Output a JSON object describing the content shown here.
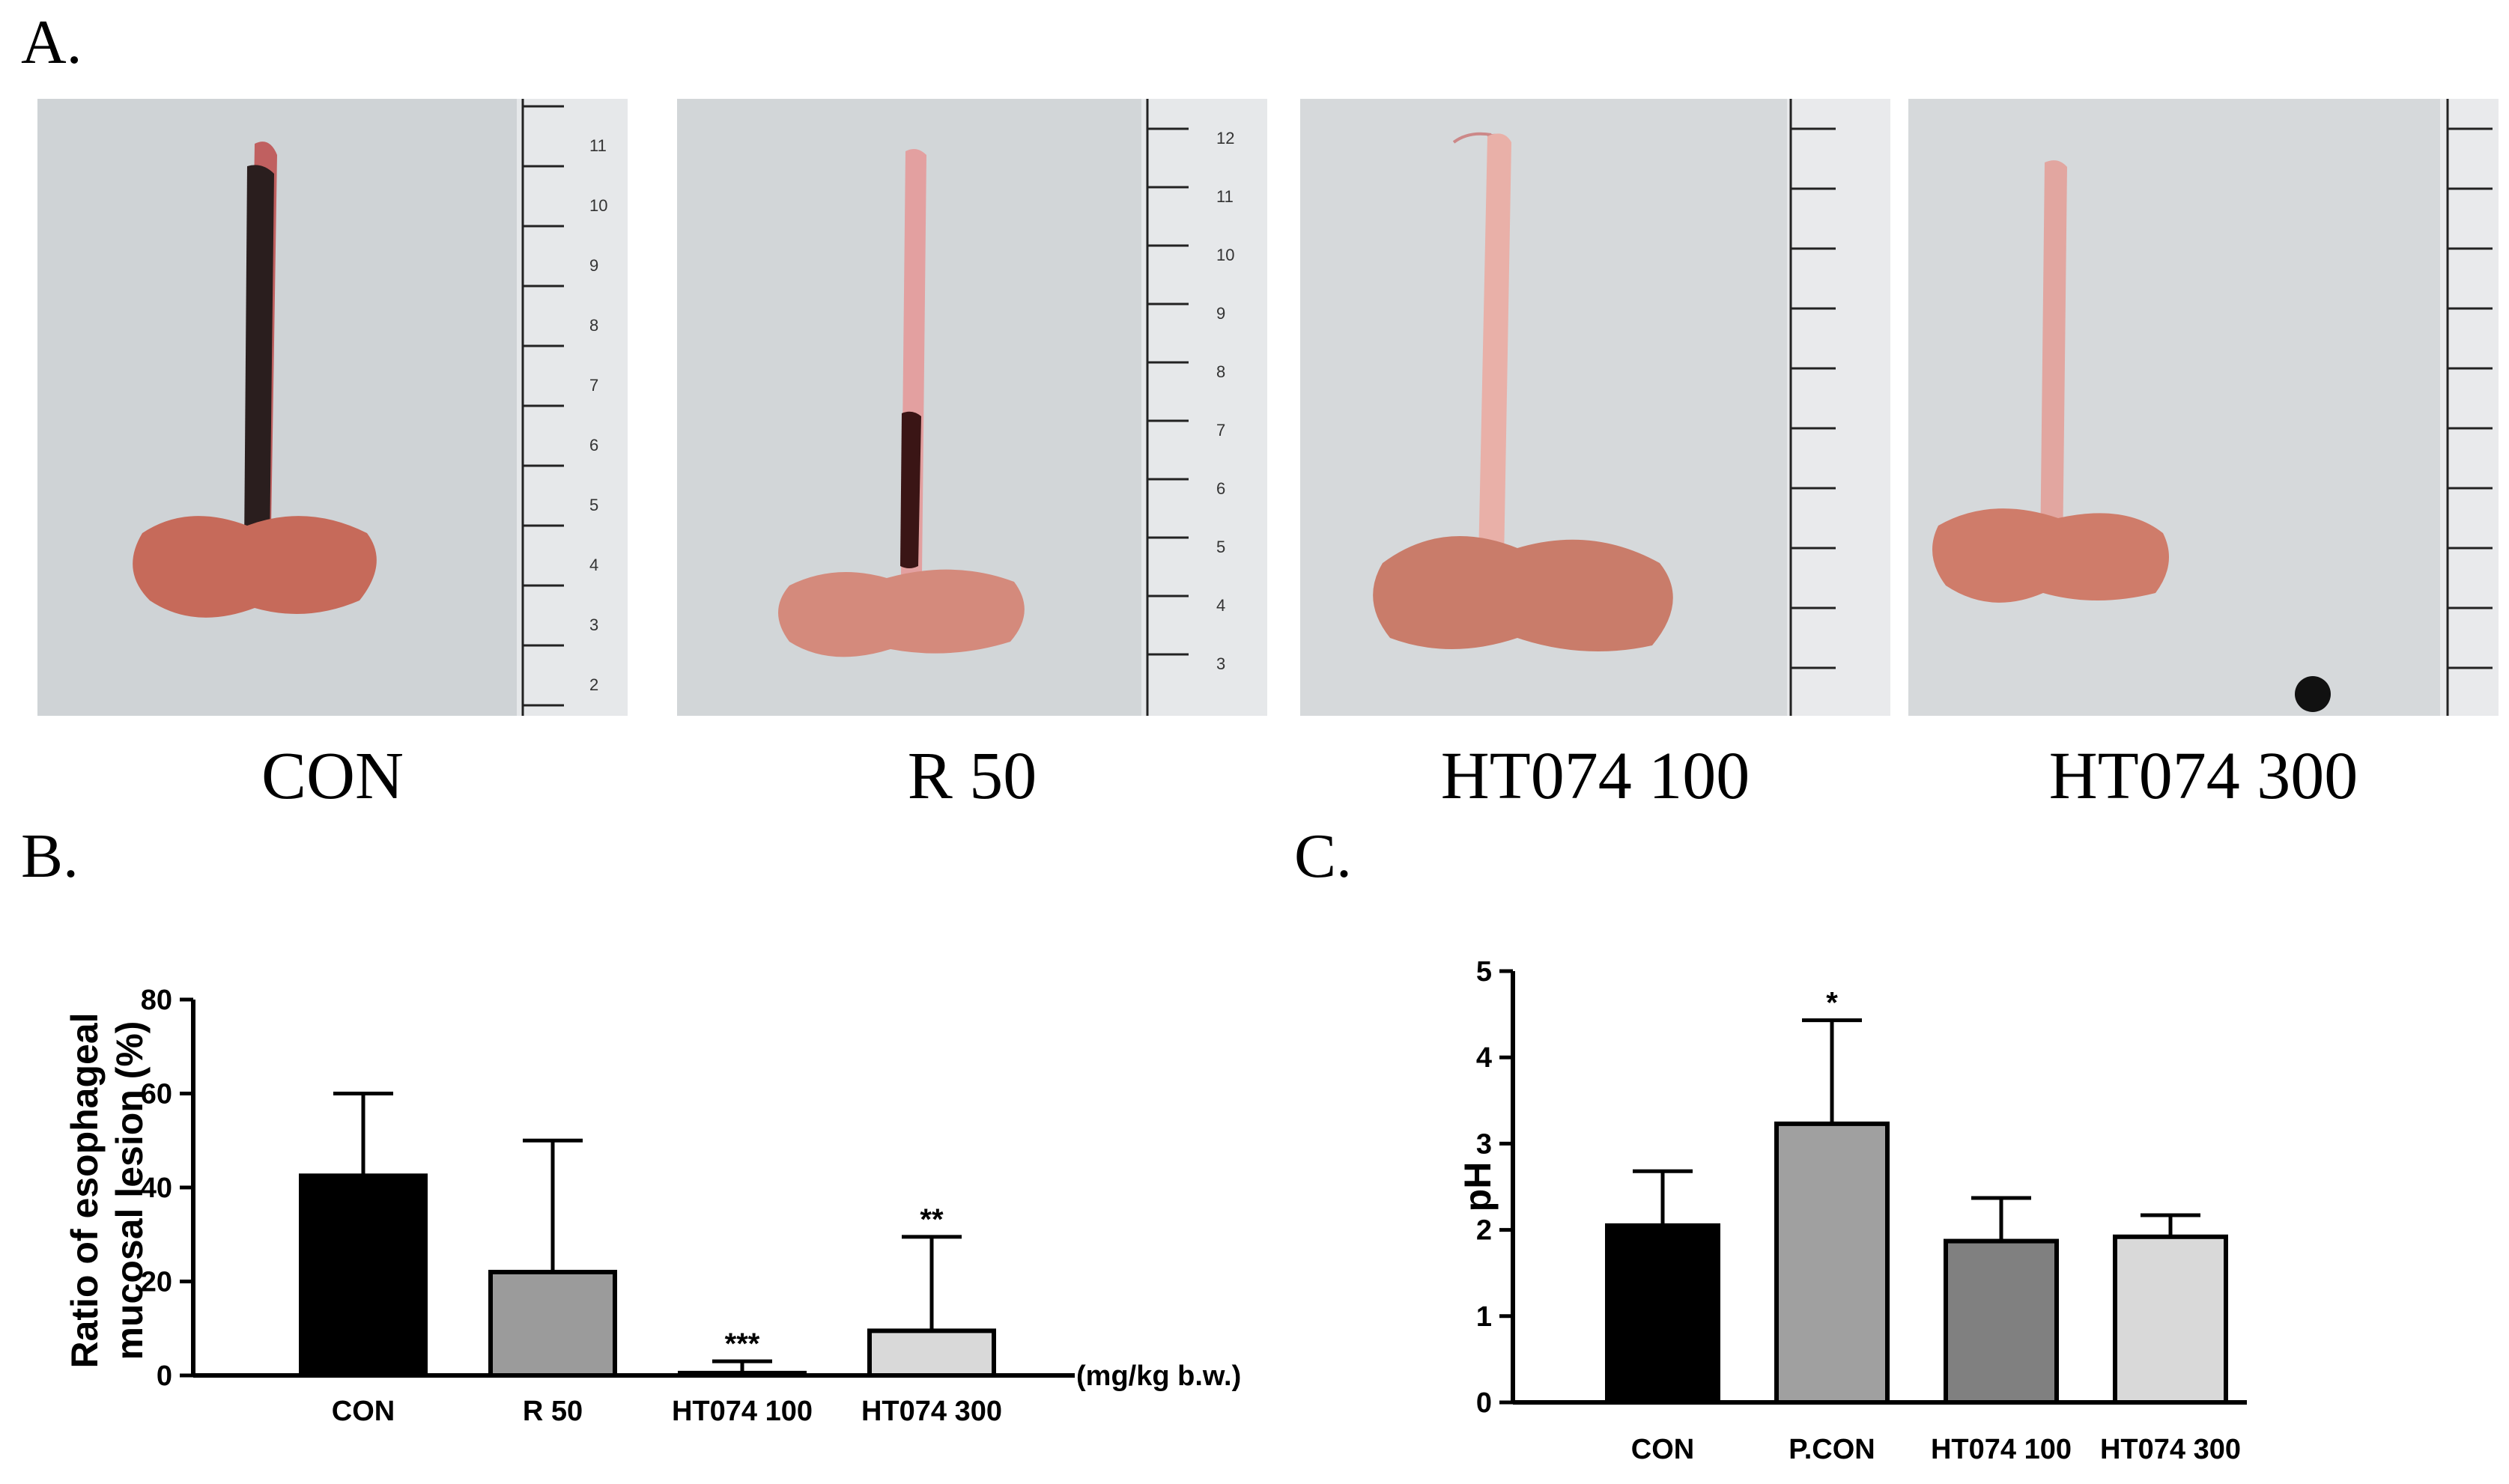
{
  "figure": {
    "panel_a_label": "A.",
    "panel_b_label": "B.",
    "panel_c_label": "C.",
    "photos": [
      {
        "label": "CON",
        "lesion_level": "severe",
        "ruler_numbers": [
          "11",
          "10",
          "9",
          "8",
          "7",
          "6",
          "5",
          "4",
          "3",
          "2"
        ]
      },
      {
        "label": "R 50",
        "lesion_level": "moderate",
        "ruler_numbers": [
          "12",
          "11",
          "10",
          "9",
          "8",
          "7",
          "6",
          "5",
          "4",
          "3"
        ]
      },
      {
        "label": "HT074 100",
        "lesion_level": "none",
        "ruler_numbers": []
      },
      {
        "label": "HT074 300",
        "lesion_level": "none",
        "ruler_numbers": []
      }
    ]
  },
  "chart_data": [
    {
      "type": "bar",
      "panel": "B",
      "categories": [
        "CON",
        "R 50",
        "HT074 100",
        "HT074 300"
      ],
      "values": [
        42.5,
        22,
        0.5,
        9.5
      ],
      "errors": [
        17.5,
        28,
        2.5,
        20
      ],
      "significance": [
        "",
        "",
        "***",
        "**"
      ],
      "colors": [
        "#000000",
        "#9b9b9b",
        "#5a5a5a",
        "#d9d9d9"
      ],
      "ylabel_line1": "Ratio of esophageal",
      "ylabel_line2": "mucosal lesion (%)",
      "xaxis_unit": "(mg/kg b.w.)",
      "ylim": [
        0,
        80
      ],
      "yticks": [
        "0",
        "20",
        "40",
        "60",
        "80"
      ]
    },
    {
      "type": "bar",
      "panel": "C",
      "categories": [
        "CON",
        "P.CON",
        "HT074 100",
        "HT074 300"
      ],
      "values": [
        2.05,
        3.23,
        1.87,
        1.92
      ],
      "errors": [
        0.63,
        1.2,
        0.5,
        0.25
      ],
      "significance": [
        "",
        "*",
        "",
        ""
      ],
      "colors": [
        "#000000",
        "#a0a0a0",
        "#808080",
        "#d9d9d9"
      ],
      "ylabel": "pH",
      "ylim": [
        0,
        5
      ],
      "yticks": [
        "0",
        "1",
        "2",
        "3",
        "4",
        "5"
      ]
    }
  ]
}
